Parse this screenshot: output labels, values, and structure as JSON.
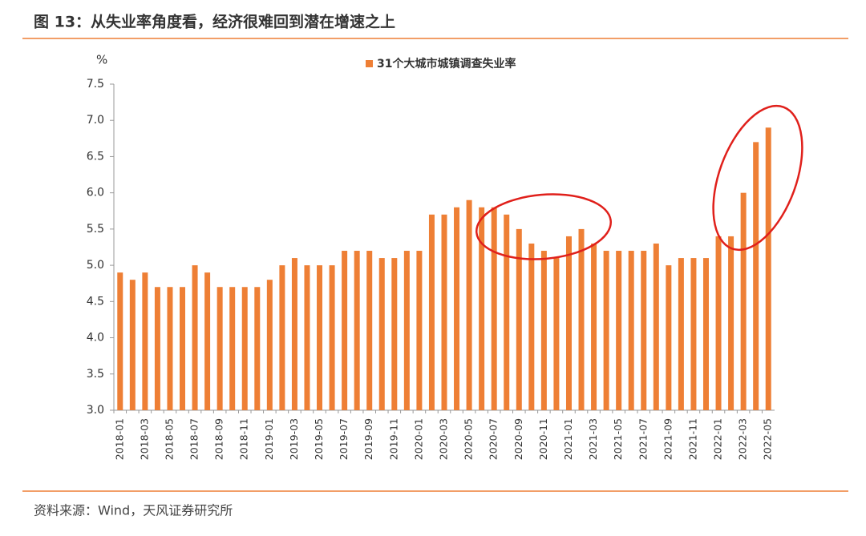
{
  "chart_data": {
    "type": "bar",
    "title": "图 13：从失业率角度看，经济很难回到潜在增速之上",
    "y_label": "%",
    "source": "资料来源：Wind，天风证券研究所",
    "categories": [
      "2018-01",
      null,
      "2018-03",
      null,
      "2018-05",
      null,
      "2018-07",
      null,
      "2018-09",
      null,
      "2018-11",
      null,
      "2019-01",
      null,
      "2019-03",
      null,
      "2019-05",
      null,
      "2019-07",
      null,
      "2019-09",
      null,
      "2019-11",
      null,
      "2020-01",
      null,
      "2020-03",
      null,
      "2020-05",
      null,
      "2020-07",
      null,
      "2020-09",
      null,
      "2020-11",
      null,
      "2021-01",
      null,
      "2021-03",
      null,
      "2021-05",
      null,
      "2021-07",
      null,
      "2021-09",
      null,
      "2021-11",
      null,
      "2022-01",
      null,
      "2022-03",
      null,
      "2022-05"
    ],
    "series": [
      {
        "name": "31个大城市城镇调查失业率",
        "color": "#ee7f35",
        "values": [
          4.9,
          4.8,
          4.9,
          4.7,
          4.7,
          4.7,
          5.0,
          4.9,
          4.7,
          4.7,
          4.7,
          4.7,
          4.8,
          5.0,
          5.1,
          5.0,
          5.0,
          5.0,
          5.2,
          5.2,
          5.2,
          5.1,
          5.1,
          5.2,
          5.2,
          5.7,
          5.7,
          5.8,
          5.9,
          5.8,
          5.8,
          5.7,
          5.5,
          5.3,
          5.2,
          5.1,
          5.4,
          5.5,
          5.3,
          5.2,
          5.2,
          5.2,
          5.2,
          5.3,
          5.0,
          5.1,
          5.1,
          5.1,
          5.4,
          5.4,
          6.0,
          6.7,
          6.9
        ]
      }
    ],
    "ylim": [
      3,
      7.5
    ],
    "yticks": [
      {
        "value": 3,
        "label": "3.0"
      },
      3.5,
      {
        "value": 4,
        "label": "4.0"
      },
      4.5,
      {
        "value": 5,
        "label": "5.0"
      },
      5.5,
      {
        "value": 6,
        "label": "6.0"
      },
      6.5,
      {
        "value": 7,
        "label": "7.0"
      },
      7.5
    ],
    "legend": "top"
  }
}
